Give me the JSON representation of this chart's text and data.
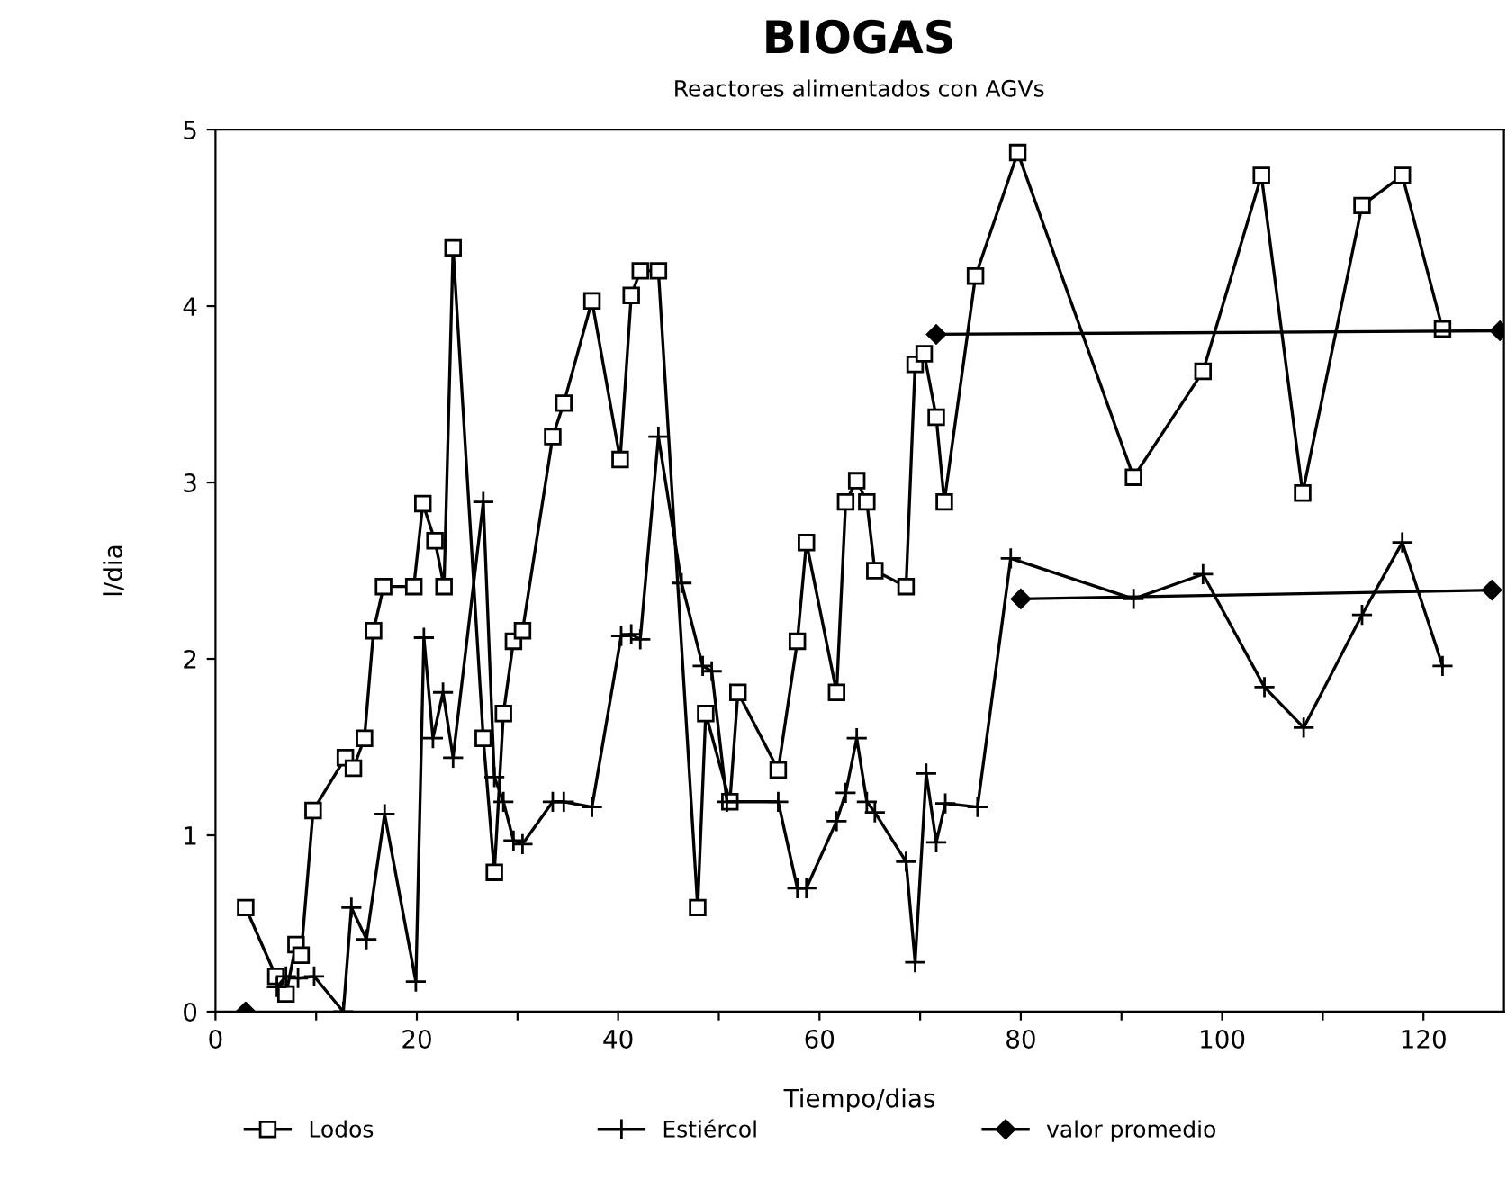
{
  "chart_data": {
    "type": "line",
    "title": "BIOGAS",
    "subtitle": "Reactores alimentados con AGVs",
    "xlabel": "Tiempo/dias",
    "ylabel": "l/dia",
    "xlim": [
      0,
      128
    ],
    "ylim": [
      0,
      5
    ],
    "xticks": [
      0,
      {
        "value": 10,
        "label": null
      },
      20,
      {
        "value": 30,
        "label": null
      },
      40,
      {
        "value": 50,
        "label": null
      },
      60,
      {
        "value": 70,
        "label": null
      },
      80,
      {
        "value": 90,
        "label": null
      },
      100,
      {
        "value": 110,
        "label": null
      },
      120
    ],
    "yticks": [
      0,
      1,
      2,
      3,
      4,
      5
    ],
    "grid": false,
    "legend": "bottom",
    "series": [
      {
        "name": "Lodos",
        "color": "#000000",
        "marker": "square",
        "x": [
          3,
          6,
          7,
          8,
          8.5,
          9.7,
          12.9,
          13.7,
          14.8,
          15.7,
          16.7,
          19.7,
          20.6,
          21.8,
          22.7,
          23.6,
          26.6,
          27.7,
          28.6,
          29.6,
          30.5,
          33.5,
          34.6,
          37.4,
          40.2,
          41.3,
          42.2,
          44,
          47.9,
          48.7,
          51.1,
          51.9,
          55.9,
          57.8,
          58.7,
          61.7,
          62.6,
          63.7,
          64.7,
          65.5,
          68.6,
          69.5,
          70.4,
          71.6,
          72.4,
          75.5,
          79.7,
          91.2,
          98.1,
          103.9,
          108,
          113.9,
          117.9,
          121.9
        ],
        "values": [
          0.59,
          0.2,
          0.1,
          0.38,
          0.32,
          1.14,
          1.44,
          1.38,
          1.55,
          2.16,
          2.41,
          2.41,
          2.88,
          2.67,
          2.41,
          4.33,
          1.55,
          0.79,
          1.69,
          2.1,
          2.16,
          3.26,
          3.45,
          4.03,
          3.13,
          4.06,
          4.2,
          4.2,
          0.59,
          1.69,
          1.19,
          1.81,
          1.37,
          2.1,
          2.66,
          1.81,
          2.89,
          3.01,
          2.89,
          2.5,
          2.41,
          3.67,
          3.73,
          3.37,
          2.89,
          4.17,
          4.87,
          3.03,
          3.63,
          4.74,
          2.94,
          4.57,
          4.74,
          3.87
        ]
      },
      {
        "name": "Estiércol",
        "color": "#000000",
        "marker": "cross",
        "x": [
          6.1,
          7,
          8.2,
          9.8,
          12.7,
          13.5,
          15,
          16.8,
          19.9,
          20.7,
          21.6,
          22.6,
          23.6,
          26.6,
          27.7,
          28.6,
          29.6,
          30.5,
          33.5,
          34.6,
          37.4,
          40.3,
          41.3,
          42.2,
          44,
          46.3,
          48.4,
          49.3,
          50.8,
          55.9,
          57.8,
          58.7,
          61.7,
          62.6,
          63.7,
          64.7,
          65.5,
          68.6,
          69.5,
          70.6,
          71.6,
          72.5,
          75.7,
          79,
          91.2,
          98.1,
          104.2,
          108.1,
          113.9,
          117.9,
          121.9
        ],
        "values": [
          0.14,
          0.2,
          0.19,
          0.2,
          0,
          0.59,
          0.41,
          1.12,
          0.17,
          2.12,
          1.55,
          1.81,
          1.44,
          2.89,
          1.33,
          1.19,
          0.97,
          0.95,
          1.19,
          1.19,
          1.16,
          2.13,
          2.14,
          2.11,
          3.26,
          2.43,
          1.96,
          1.93,
          1.19,
          1.19,
          0.7,
          0.7,
          1.08,
          1.24,
          1.55,
          1.19,
          1.13,
          0.85,
          0.28,
          1.35,
          0.96,
          1.18,
          1.16,
          2.57,
          2.34,
          2.48,
          1.84,
          1.61,
          2.25,
          2.66,
          1.96
        ]
      },
      {
        "name": "valor promedio",
        "color": "#000000",
        "marker": "diamond",
        "x": [
          71.6,
          127.6
        ],
        "values": [
          3.84,
          3.86
        ]
      },
      {
        "color": "#000000",
        "marker": "diamond",
        "x": [
          80,
          126.8
        ],
        "values": [
          2.34,
          2.39
        ]
      },
      {
        "type": "scatter",
        "color": "#000000",
        "marker": "diamond",
        "x": [
          3
        ],
        "values": [
          0
        ]
      }
    ]
  }
}
